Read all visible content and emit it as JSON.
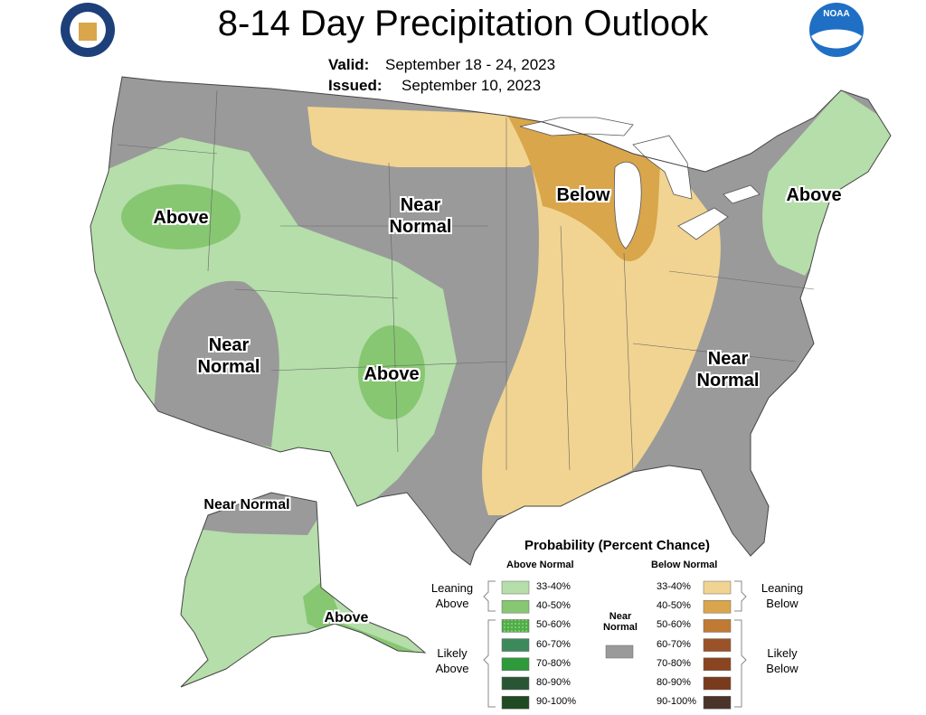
{
  "header": {
    "title": "8-14 Day Precipitation Outlook",
    "valid_label": "Valid:",
    "valid": "September 18 - 24, 2023",
    "issued_label": "Issued:",
    "issued": "September 10, 2023",
    "logo_text": "NOAA"
  },
  "map_labels": [
    "Above",
    "Near Normal",
    "Below",
    "Above",
    "Near Normal",
    "Above",
    "Near Normal",
    "Near Normal",
    "Above"
  ],
  "legend": {
    "title": "Probability (Percent Chance)",
    "above_heading": "Above Normal",
    "below_heading": "Below Normal",
    "near_label": "Near Normal",
    "near_color": "#9a9a9a",
    "above_groups": [
      "Leaning Above",
      "Likely Above"
    ],
    "below_groups": [
      "Leaning Below",
      "Likely Below"
    ],
    "above": [
      {
        "range": "33-40%",
        "color": "#b5deaa"
      },
      {
        "range": "40-50%",
        "color": "#87c772"
      },
      {
        "range": "50-60%",
        "color": "#4fae48"
      },
      {
        "range": "60-70%",
        "color": "#3c8a5c"
      },
      {
        "range": "70-80%",
        "color": "#2e9a3c"
      },
      {
        "range": "80-90%",
        "color": "#2a5534"
      },
      {
        "range": "90-100%",
        "color": "#1f4a22"
      }
    ],
    "below": [
      {
        "range": "33-40%",
        "color": "#f1d491"
      },
      {
        "range": "40-50%",
        "color": "#d9a64b"
      },
      {
        "range": "50-60%",
        "color": "#c07a33"
      },
      {
        "range": "60-70%",
        "color": "#9c5228"
      },
      {
        "range": "70-80%",
        "color": "#8a4420"
      },
      {
        "range": "80-90%",
        "color": "#7a3a1c"
      },
      {
        "range": "90-100%",
        "color": "#4a342a"
      }
    ]
  }
}
